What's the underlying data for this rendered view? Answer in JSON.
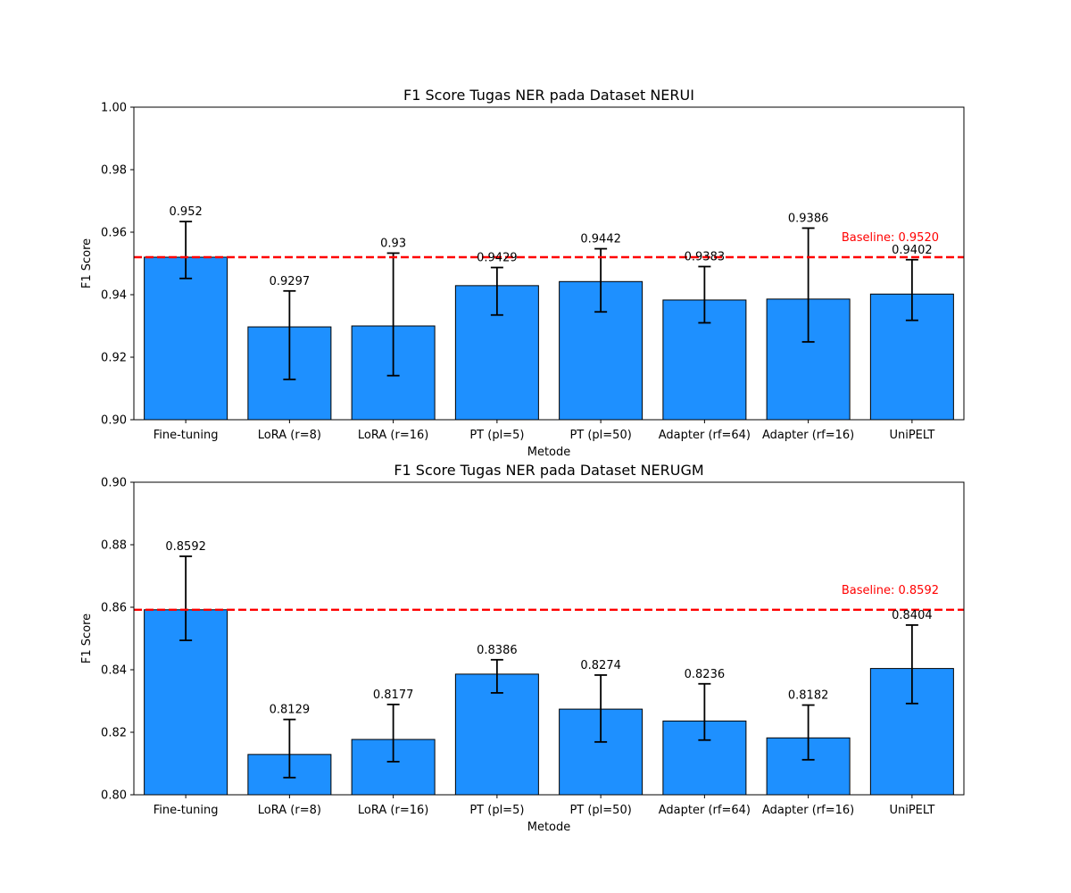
{
  "chart_data": [
    {
      "type": "bar",
      "title": "F1 Score Tugas NER pada Dataset NERUI",
      "xlabel": "Metode",
      "ylabel": "F1 Score",
      "ylim": [
        0.9,
        1.0
      ],
      "yticks": [
        "0.90",
        "0.92",
        "0.94",
        "0.96",
        "0.98",
        "1.00"
      ],
      "categories": [
        "Fine-tuning",
        "LoRA (r=8)",
        "LoRA (r=16)",
        "PT (pl=5)",
        "PT (pl=50)",
        "Adapter (rf=64)",
        "Adapter (rf=16)",
        "UniPELT"
      ],
      "values": [
        0.952,
        0.9297,
        0.93,
        0.9429,
        0.9442,
        0.9383,
        0.9386,
        0.9402
      ],
      "value_labels": [
        "0.952",
        "0.9297",
        "0.93",
        "0.9429",
        "0.9442",
        "0.9383",
        "0.9386",
        "0.9402"
      ],
      "error_low": [
        0.9452,
        0.9129,
        0.9141,
        0.9335,
        0.9345,
        0.931,
        0.9249,
        0.9318
      ],
      "error_high": [
        0.9634,
        0.9412,
        0.9533,
        0.9487,
        0.9547,
        0.949,
        0.9613,
        0.9512
      ],
      "baseline": {
        "value": 0.952,
        "label": "Baseline: 0.9520"
      },
      "grid": false
    },
    {
      "type": "bar",
      "title": "F1 Score Tugas NER pada Dataset NERUGM",
      "xlabel": "Metode",
      "ylabel": "F1 Score",
      "ylim": [
        0.8,
        0.9
      ],
      "yticks": [
        "0.80",
        "0.82",
        "0.84",
        "0.86",
        "0.88",
        "0.90"
      ],
      "categories": [
        "Fine-tuning",
        "LoRA (r=8)",
        "LoRA (r=16)",
        "PT (pl=5)",
        "PT (pl=50)",
        "Adapter (rf=64)",
        "Adapter (rf=16)",
        "UniPELT"
      ],
      "values": [
        0.8592,
        0.8129,
        0.8177,
        0.8386,
        0.8274,
        0.8236,
        0.8182,
        0.8404
      ],
      "value_labels": [
        "0.8592",
        "0.8129",
        "0.8177",
        "0.8386",
        "0.8274",
        "0.8236",
        "0.8182",
        "0.8404"
      ],
      "error_low": [
        0.8494,
        0.8055,
        0.8106,
        0.8326,
        0.8169,
        0.8175,
        0.8112,
        0.8292
      ],
      "error_high": [
        0.8763,
        0.8241,
        0.8289,
        0.8432,
        0.8383,
        0.8355,
        0.8287,
        0.8543
      ],
      "baseline": {
        "value": 0.8592,
        "label": "Baseline: 0.8592"
      },
      "grid": false
    }
  ],
  "colors": {
    "bar_fill": "#1e90ff",
    "bar_edge": "#000000",
    "error_bar": "#000000",
    "baseline": "#ff0000",
    "text": "#000000",
    "background": "#ffffff"
  }
}
